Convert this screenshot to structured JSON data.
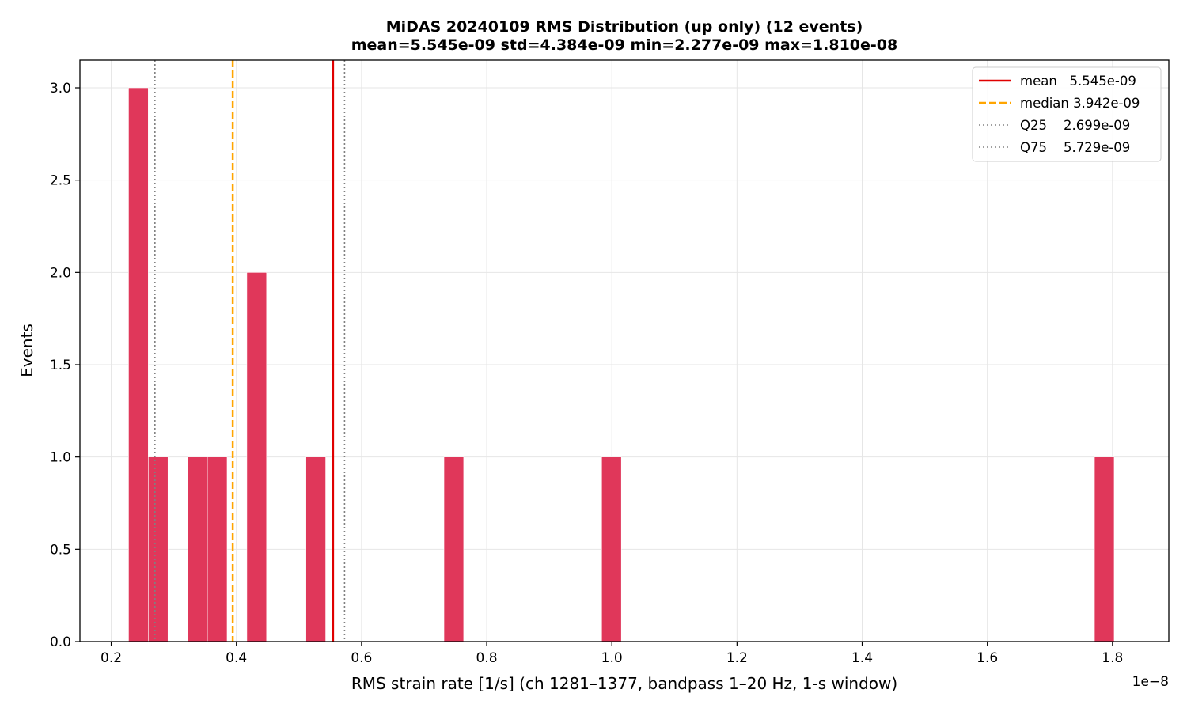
{
  "chart_data": {
    "type": "bar",
    "title": "MiDAS 20240109  RMS Distribution  (up only)  (12 events)",
    "subtitle": "mean=5.545e-09  std=4.384e-09  min=2.277e-09  max=1.810e-08",
    "xlabel": "RMS strain rate [1/s]  (ch 1281–1377, bandpass 1–20 Hz, 1-s window)",
    "ylabel": "Events",
    "x_offset_label": "1e−8",
    "xlim": [
      0.15,
      1.89
    ],
    "ylim": [
      0,
      3.15
    ],
    "bin_width": 0.0315,
    "bins": [
      {
        "left": 0.2277,
        "count": 3
      },
      {
        "left": 0.2592,
        "count": 1
      },
      {
        "left": 0.3222,
        "count": 1
      },
      {
        "left": 0.3537,
        "count": 1
      },
      {
        "left": 0.4167,
        "count": 2
      },
      {
        "left": 0.5112,
        "count": 1
      },
      {
        "left": 0.7317,
        "count": 1
      },
      {
        "left": 0.9837,
        "count": 1
      },
      {
        "left": 1.7712,
        "count": 1
      }
    ],
    "x_ticks": [
      "0.2",
      "0.4",
      "0.6",
      "0.8",
      "1.0",
      "1.2",
      "1.4",
      "1.6",
      "1.8"
    ],
    "y_ticks": [
      "0.0",
      "0.5",
      "1.0",
      "1.5",
      "2.0",
      "2.5",
      "3.0"
    ],
    "grid": true,
    "bar_color": "#e0375a",
    "reference_lines": [
      {
        "name": "mean",
        "value": 0.5545,
        "label": "mean   5.545e-09",
        "color": "#e00000",
        "style": "solid"
      },
      {
        "name": "median",
        "value": 0.3942,
        "label": "median 3.942e-09",
        "color": "#ffa500",
        "style": "dashed"
      },
      {
        "name": "q25",
        "value": 0.2699,
        "label": "Q25    2.699e-09",
        "color": "#808080",
        "style": "dotted"
      },
      {
        "name": "q75",
        "value": 0.5729,
        "label": "Q75    5.729e-09",
        "color": "#808080",
        "style": "dotted"
      }
    ],
    "legend_position": "top-right"
  }
}
